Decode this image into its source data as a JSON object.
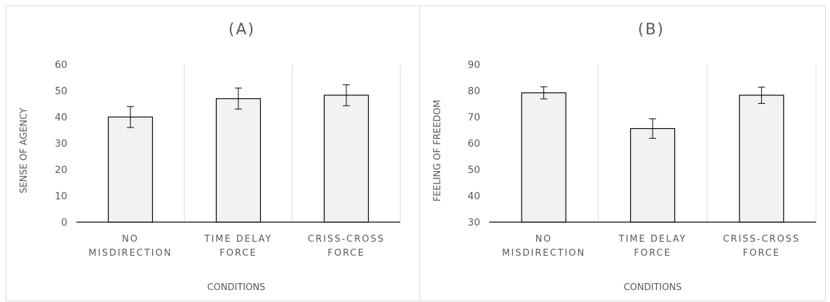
{
  "colors": {
    "bar_fill": "#f2f2f2",
    "bar_stroke": "#000000",
    "grid": "#d9d9d9",
    "axis": "#000000",
    "text": "#595959"
  },
  "chart_data": [
    {
      "type": "bar",
      "title": "(A)",
      "categories": [
        [
          "NO",
          "MISDIRECTION"
        ],
        [
          "TIME DELAY",
          "FORCE"
        ],
        [
          "CRISS-CROSS",
          "FORCE"
        ]
      ],
      "values": [
        40,
        47,
        48.3
      ],
      "error": [
        4,
        4,
        4
      ],
      "ylim": [
        0,
        60
      ],
      "yticks": [
        0,
        10,
        20,
        30,
        40,
        50,
        60
      ],
      "ylabel": "SENSE OF AGENCY",
      "xlabel": "CONDITIONS",
      "grid": "vertical separators between categories"
    },
    {
      "type": "bar",
      "title": "(B)",
      "categories": [
        [
          "NO",
          "MISDIRECTION"
        ],
        [
          "TIME DELAY",
          "FORCE"
        ],
        [
          "CRISS-CROSS",
          "FORCE"
        ]
      ],
      "values": [
        79.2,
        65.6,
        78.3
      ],
      "error": [
        2.3,
        3.7,
        3.1
      ],
      "ylim": [
        30,
        90
      ],
      "yticks": [
        30,
        40,
        50,
        60,
        70,
        80,
        90
      ],
      "ylabel": "FEELING OF FREEDOM",
      "xlabel": "CONDITIONS",
      "grid": "vertical separators between categories"
    }
  ]
}
